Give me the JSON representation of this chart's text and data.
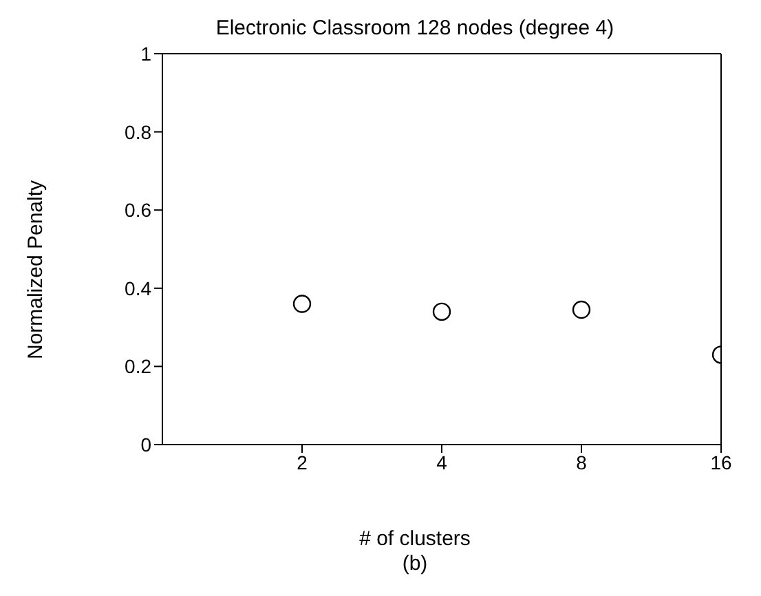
{
  "chart_data": {
    "type": "scatter",
    "title": "Electronic Classroom 128 nodes (degree 4)",
    "xlabel": "# of clusters",
    "ylabel": "Normalized Penalty",
    "annotations": [
      "(b)"
    ],
    "x": [
      2,
      4,
      8,
      16
    ],
    "values": [
      0.36,
      0.34,
      0.345,
      0.23
    ],
    "color": "#000000",
    "marker": "circle",
    "log": "x",
    "xlim": [
      1,
      16
    ],
    "xticks": [
      2,
      4,
      8,
      16
    ],
    "ylim": [
      0,
      1
    ],
    "yticks": [
      0,
      0.2,
      0.4,
      0.6,
      0.8,
      1
    ],
    "grid": false
  }
}
